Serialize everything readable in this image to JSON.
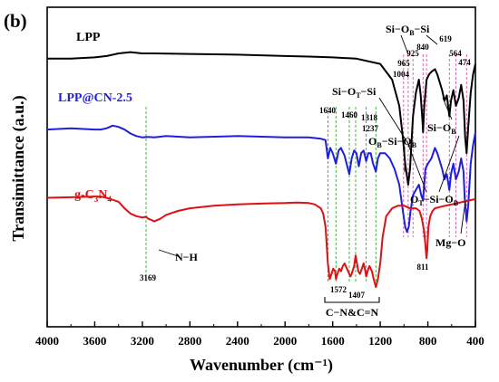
{
  "panel_label": "(b)",
  "chart_data": {
    "type": "line",
    "xlabel": "Wavenumber (cm⁻¹)",
    "ylabel": "Transimittance (a.u.)",
    "xlim": [
      4000,
      400
    ],
    "x_reversed": true,
    "x_ticks": [
      4000,
      3600,
      3200,
      2800,
      2400,
      2000,
      1600,
      1200,
      800,
      400
    ],
    "grid": false,
    "series": [
      {
        "name": "LPP",
        "color": "#000000",
        "points": [
          [
            4000,
            88
          ],
          [
            3800,
            88
          ],
          [
            3600,
            88.5
          ],
          [
            3500,
            89
          ],
          [
            3400,
            90
          ],
          [
            3300,
            90.5
          ],
          [
            3200,
            90
          ],
          [
            3100,
            90
          ],
          [
            2800,
            89.8
          ],
          [
            2400,
            89.5
          ],
          [
            2000,
            89
          ],
          [
            1800,
            88.8
          ],
          [
            1600,
            88.5
          ],
          [
            1400,
            88
          ],
          [
            1200,
            86
          ],
          [
            1100,
            80
          ],
          [
            1040,
            70
          ],
          [
            1010,
            58
          ],
          [
            990,
            48
          ],
          [
            965,
            40
          ],
          [
            950,
            46
          ],
          [
            925,
            66
          ],
          [
            900,
            75
          ],
          [
            875,
            80
          ],
          [
            860,
            74
          ],
          [
            845,
            64
          ],
          [
            840,
            60
          ],
          [
            830,
            70
          ],
          [
            810,
            80
          ],
          [
            790,
            82
          ],
          [
            770,
            83
          ],
          [
            740,
            84
          ],
          [
            720,
            82
          ],
          [
            700,
            79
          ],
          [
            680,
            76
          ],
          [
            660,
            72
          ],
          [
            640,
            74
          ],
          [
            619,
            66
          ],
          [
            605,
            72
          ],
          [
            585,
            76
          ],
          [
            564,
            70
          ],
          [
            540,
            73
          ],
          [
            520,
            78
          ],
          [
            500,
            72
          ],
          [
            486,
            58
          ],
          [
            474,
            52
          ],
          [
            460,
            62
          ],
          [
            440,
            75
          ],
          [
            420,
            82
          ],
          [
            400,
            86
          ]
        ]
      },
      {
        "name": "LPP@CN-2.5",
        "color": "#1f1fe0",
        "points": [
          [
            4000,
            61
          ],
          [
            3800,
            61.5
          ],
          [
            3600,
            61
          ],
          [
            3550,
            61
          ],
          [
            3500,
            61.5
          ],
          [
            3450,
            62.5
          ],
          [
            3400,
            62
          ],
          [
            3350,
            61
          ],
          [
            3300,
            59.5
          ],
          [
            3250,
            58.5
          ],
          [
            3200,
            58
          ],
          [
            3150,
            58.2
          ],
          [
            3100,
            58
          ],
          [
            3000,
            58.5
          ],
          [
            2800,
            58
          ],
          [
            2400,
            58.5
          ],
          [
            2000,
            58
          ],
          [
            1800,
            58
          ],
          [
            1700,
            57.5
          ],
          [
            1660,
            57
          ],
          [
            1640,
            50
          ],
          [
            1620,
            54
          ],
          [
            1600,
            52
          ],
          [
            1572,
            48
          ],
          [
            1550,
            53
          ],
          [
            1530,
            54
          ],
          [
            1500,
            51
          ],
          [
            1460,
            44
          ],
          [
            1440,
            50
          ],
          [
            1420,
            53
          ],
          [
            1400,
            52
          ],
          [
            1380,
            47
          ],
          [
            1360,
            52
          ],
          [
            1340,
            53
          ],
          [
            1318,
            49
          ],
          [
            1300,
            52
          ],
          [
            1280,
            52
          ],
          [
            1260,
            48
          ],
          [
            1237,
            45
          ],
          [
            1220,
            50
          ],
          [
            1200,
            52
          ],
          [
            1160,
            52
          ],
          [
            1120,
            50
          ],
          [
            1080,
            46
          ],
          [
            1040,
            40
          ],
          [
            1010,
            30
          ],
          [
            990,
            24
          ],
          [
            975,
            22
          ],
          [
            960,
            24
          ],
          [
            945,
            30
          ],
          [
            925,
            36
          ],
          [
            900,
            38
          ],
          [
            875,
            40
          ],
          [
            855,
            36
          ],
          [
            840,
            34
          ],
          [
            830,
            40
          ],
          [
            820,
            46
          ],
          [
            800,
            48
          ],
          [
            770,
            50
          ],
          [
            740,
            54
          ],
          [
            720,
            52
          ],
          [
            700,
            49
          ],
          [
            680,
            46
          ],
          [
            660,
            42
          ],
          [
            640,
            44
          ],
          [
            619,
            38
          ],
          [
            605,
            44
          ],
          [
            585,
            48
          ],
          [
            564,
            42
          ],
          [
            540,
            45
          ],
          [
            520,
            50
          ],
          [
            500,
            45
          ],
          [
            490,
            35
          ],
          [
            474,
            26
          ],
          [
            460,
            32
          ],
          [
            440,
            48
          ],
          [
            420,
            55
          ],
          [
            400,
            60
          ]
        ]
      },
      {
        "name": "g-C3N4",
        "color": "#dd1111",
        "points": [
          [
            4000,
            35
          ],
          [
            3800,
            35.2
          ],
          [
            3600,
            35.5
          ],
          [
            3550,
            35.5
          ],
          [
            3500,
            35
          ],
          [
            3400,
            33.5
          ],
          [
            3350,
            31
          ],
          [
            3300,
            29
          ],
          [
            3250,
            28
          ],
          [
            3200,
            27.5
          ],
          [
            3169,
            27.8
          ],
          [
            3150,
            27
          ],
          [
            3120,
            26.5
          ],
          [
            3100,
            26
          ],
          [
            3050,
            27
          ],
          [
            3000,
            28.5
          ],
          [
            2900,
            30
          ],
          [
            2800,
            31
          ],
          [
            2600,
            32
          ],
          [
            2400,
            32.5
          ],
          [
            2200,
            32.8
          ],
          [
            2000,
            33
          ],
          [
            1900,
            33.2
          ],
          [
            1800,
            33
          ],
          [
            1750,
            32.5
          ],
          [
            1700,
            31
          ],
          [
            1680,
            29
          ],
          [
            1660,
            24
          ],
          [
            1640,
            10
          ],
          [
            1625,
            4
          ],
          [
            1610,
            6
          ],
          [
            1595,
            8
          ],
          [
            1580,
            7
          ],
          [
            1572,
            4
          ],
          [
            1560,
            6
          ],
          [
            1545,
            8
          ],
          [
            1530,
            7
          ],
          [
            1515,
            9
          ],
          [
            1500,
            10
          ],
          [
            1480,
            8
          ],
          [
            1460,
            6
          ],
          [
            1450,
            5
          ],
          [
            1440,
            6
          ],
          [
            1420,
            9
          ],
          [
            1407,
            13
          ],
          [
            1395,
            10
          ],
          [
            1385,
            7
          ],
          [
            1370,
            6
          ],
          [
            1355,
            8
          ],
          [
            1340,
            10
          ],
          [
            1325,
            7
          ],
          [
            1318,
            5
          ],
          [
            1300,
            8
          ],
          [
            1290,
            9
          ],
          [
            1270,
            7
          ],
          [
            1255,
            4
          ],
          [
            1237,
            1
          ],
          [
            1220,
            4
          ],
          [
            1200,
            10
          ],
          [
            1180,
            20
          ],
          [
            1150,
            28
          ],
          [
            1100,
            31
          ],
          [
            1050,
            32
          ],
          [
            1000,
            32
          ],
          [
            950,
            31
          ],
          [
            900,
            31
          ],
          [
            870,
            30
          ],
          [
            850,
            27
          ],
          [
            830,
            22
          ],
          [
            815,
            14
          ],
          [
            811,
            12
          ],
          [
            805,
            15
          ],
          [
            795,
            24
          ],
          [
            780,
            28
          ],
          [
            760,
            30
          ],
          [
            740,
            31
          ],
          [
            700,
            31.5
          ],
          [
            650,
            32
          ],
          [
            600,
            32.5
          ],
          [
            550,
            33
          ],
          [
            500,
            33.5
          ],
          [
            450,
            34
          ],
          [
            400,
            34.5
          ]
        ]
      }
    ],
    "series_labels": [
      {
        "text": "LPP",
        "series": 0
      },
      {
        "text": "LPP@CN-2.5",
        "series": 1
      },
      {
        "text": "g-C",
        "sub1": "3",
        "mid": "N",
        "sub2": "4",
        "series": 2
      }
    ],
    "peak_markers": [
      3169,
      1640,
      1572,
      1460,
      1407,
      1318,
      1237,
      1004,
      965,
      925,
      840,
      811,
      619,
      564,
      474
    ],
    "annotations": {
      "nh": "N−H",
      "v3169": "3169",
      "v1640": "1640",
      "v1460": "1460",
      "v1318": "1318",
      "v1237": "1237",
      "v1572": "1572",
      "v1407": "1407",
      "cn": "C−N&C=N",
      "v1004": "1004",
      "v965": "965",
      "v925": "925",
      "v840": "840",
      "v811": "811",
      "v619": "619",
      "v564": "564",
      "v474": "474",
      "siobsi_1": "Si−O",
      "siobsi_sub": "B",
      "siobsi_2": "−Si",
      "siotsi_1": "Si−O",
      "siotsi_sub": "T",
      "siotsi_2": "−Si",
      "obsiob_1": "O",
      "obsiob_sub1": "B",
      "obsiob_2": "−Si−O",
      "obsiob_sub2": "B",
      "siob_1": "Si−O",
      "siob_sub": "B",
      "otsiob_1": "O",
      "otsiob_sub1": "T",
      "otsiob_2": "−Si−O",
      "otsiob_sub2": "B",
      "mgo": "Mg−O"
    }
  }
}
